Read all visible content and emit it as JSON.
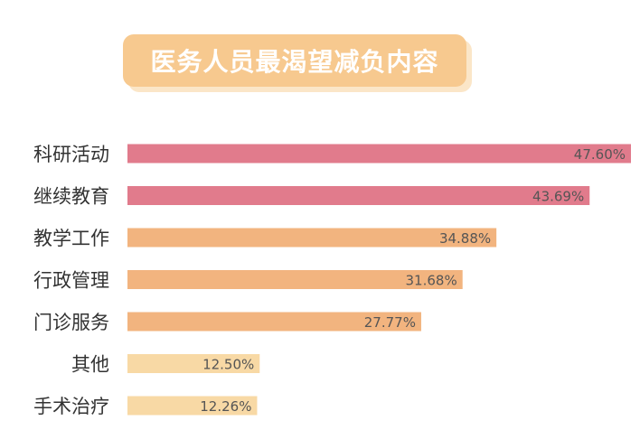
{
  "chart_data": {
    "type": "bar",
    "orientation": "horizontal",
    "title": "医务人员最渴望减负内容",
    "categories": [
      "科研活动",
      "继续教育",
      "教学工作",
      "行政管理",
      "门诊服务",
      "其他",
      "手术治疗"
    ],
    "values": [
      47.6,
      43.69,
      34.88,
      31.68,
      27.77,
      12.5,
      12.26
    ],
    "value_labels": [
      "47.60%",
      "43.69%",
      "34.88%",
      "31.68%",
      "27.77%",
      "12.50%",
      "12.26%"
    ],
    "xlim": [
      0,
      47.6
    ],
    "grid": false,
    "legend": "none"
  },
  "colors": {
    "bars": [
      "#e17b8c",
      "#e17b8c",
      "#f2b47f",
      "#f2b47f",
      "#f2b47f",
      "#f8d9a5",
      "#f8d9a5"
    ],
    "title_bg": "#f7c98f",
    "title_shadow": "#fbe6c8",
    "title_text": "#ffffff"
  }
}
